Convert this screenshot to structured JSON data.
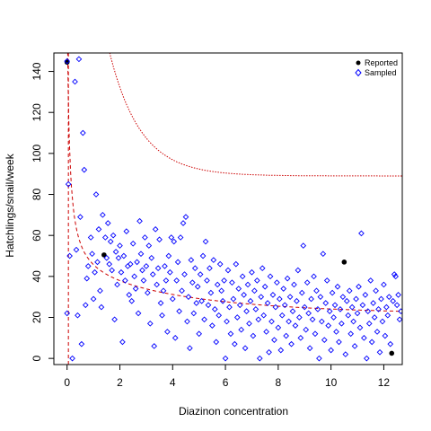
{
  "chart_data": {
    "type": "scatter",
    "xlabel": "Diazinon concentration",
    "ylabel": "Hatchlings/snail/week",
    "xlim": [
      -0.5,
      12.7
    ],
    "ylim": [
      -3,
      149
    ],
    "x_ticks": [
      0,
      2,
      4,
      6,
      8,
      10,
      12
    ],
    "y_ticks": [
      0,
      20,
      40,
      60,
      80,
      100,
      120,
      140
    ],
    "grid": false,
    "legend_position": "top-right",
    "legend": [
      {
        "label": "Reported",
        "marker": "filled-circle",
        "color": "#000000"
      },
      {
        "label": "Sampled",
        "marker": "open-diamond",
        "color": "#0000ff"
      }
    ],
    "series": [
      {
        "name": "Reported",
        "color": "#000000",
        "points": [
          [
            0.0,
            144.5
          ],
          [
            1.4,
            50.5
          ],
          [
            10.5,
            47.0
          ],
          [
            12.3,
            2.5
          ]
        ]
      },
      {
        "name": "Sampled",
        "color": "#0000ff",
        "points": [
          [
            0.0,
            145
          ],
          [
            0.0,
            22
          ],
          [
            0.05,
            85
          ],
          [
            0.1,
            50
          ],
          [
            0.2,
            0
          ],
          [
            0.3,
            135
          ],
          [
            0.35,
            53
          ],
          [
            0.4,
            21
          ],
          [
            0.45,
            146
          ],
          [
            0.5,
            69
          ],
          [
            0.55,
            7
          ],
          [
            0.6,
            110
          ],
          [
            0.65,
            92
          ],
          [
            0.7,
            26
          ],
          [
            0.75,
            39
          ],
          [
            0.8,
            45
          ],
          [
            0.9,
            59
          ],
          [
            0.95,
            51
          ],
          [
            1.0,
            29
          ],
          [
            1.05,
            42
          ],
          [
            1.1,
            80
          ],
          [
            1.15,
            47
          ],
          [
            1.2,
            63
          ],
          [
            1.25,
            33
          ],
          [
            1.3,
            25
          ],
          [
            1.35,
            70
          ],
          [
            1.45,
            59
          ],
          [
            1.5,
            49
          ],
          [
            1.55,
            66
          ],
          [
            1.6,
            46
          ],
          [
            1.65,
            57
          ],
          [
            1.7,
            43
          ],
          [
            1.75,
            60
          ],
          [
            1.8,
            19
          ],
          [
            1.85,
            52
          ],
          [
            1.9,
            36
          ],
          [
            1.95,
            49
          ],
          [
            2.0,
            55
          ],
          [
            2.05,
            42
          ],
          [
            2.1,
            8
          ],
          [
            2.15,
            50
          ],
          [
            2.2,
            38
          ],
          [
            2.25,
            62
          ],
          [
            2.3,
            45
          ],
          [
            2.35,
            31
          ],
          [
            2.4,
            46
          ],
          [
            2.45,
            28
          ],
          [
            2.5,
            56
          ],
          [
            2.55,
            40
          ],
          [
            2.6,
            34
          ],
          [
            2.65,
            47
          ],
          [
            2.7,
            22
          ],
          [
            2.75,
            67
          ],
          [
            2.8,
            51
          ],
          [
            2.85,
            43
          ],
          [
            2.9,
            38
          ],
          [
            2.95,
            59
          ],
          [
            3.0,
            45
          ],
          [
            3.05,
            32
          ],
          [
            3.1,
            55
          ],
          [
            3.15,
            17
          ],
          [
            3.2,
            49
          ],
          [
            3.25,
            41
          ],
          [
            3.3,
            6
          ],
          [
            3.35,
            63
          ],
          [
            3.4,
            36
          ],
          [
            3.45,
            44
          ],
          [
            3.5,
            58
          ],
          [
            3.55,
            27
          ],
          [
            3.6,
            21
          ],
          [
            3.65,
            33
          ],
          [
            3.7,
            45
          ],
          [
            3.75,
            38
          ],
          [
            3.8,
            13
          ],
          [
            3.85,
            50
          ],
          [
            3.9,
            42
          ],
          [
            3.95,
            59
          ],
          [
            4.0,
            29
          ],
          [
            4.05,
            57
          ],
          [
            4.1,
            10
          ],
          [
            4.15,
            38
          ],
          [
            4.2,
            47
          ],
          [
            4.25,
            23
          ],
          [
            4.3,
            59
          ],
          [
            4.35,
            33
          ],
          [
            4.4,
            66
          ],
          [
            4.45,
            41
          ],
          [
            4.5,
            69
          ],
          [
            4.55,
            18
          ],
          [
            4.6,
            30
          ],
          [
            4.65,
            5
          ],
          [
            4.7,
            48
          ],
          [
            4.75,
            37
          ],
          [
            4.8,
            22
          ],
          [
            4.85,
            44
          ],
          [
            4.9,
            27
          ],
          [
            4.95,
            35
          ],
          [
            5.0,
            12
          ],
          [
            5.05,
            41
          ],
          [
            5.1,
            28
          ],
          [
            5.15,
            50
          ],
          [
            5.2,
            19
          ],
          [
            5.25,
            57
          ],
          [
            5.3,
            38
          ],
          [
            5.35,
            26
          ],
          [
            5.4,
            44
          ],
          [
            5.45,
            32
          ],
          [
            5.5,
            16
          ],
          [
            5.55,
            48
          ],
          [
            5.6,
            24
          ],
          [
            5.65,
            8
          ],
          [
            5.7,
            36
          ],
          [
            5.75,
            21
          ],
          [
            5.8,
            46
          ],
          [
            5.85,
            33
          ],
          [
            5.9,
            28
          ],
          [
            5.95,
            38
          ],
          [
            6.0,
            0
          ],
          [
            6.05,
            18
          ],
          [
            6.1,
            43
          ],
          [
            6.15,
            25
          ],
          [
            6.2,
            12
          ],
          [
            6.25,
            37
          ],
          [
            6.3,
            29
          ],
          [
            6.35,
            7
          ],
          [
            6.4,
            46
          ],
          [
            6.45,
            20
          ],
          [
            6.5,
            34
          ],
          [
            6.55,
            26
          ],
          [
            6.6,
            14
          ],
          [
            6.65,
            40
          ],
          [
            6.7,
            31
          ],
          [
            6.75,
            5
          ],
          [
            6.8,
            23
          ],
          [
            6.85,
            36
          ],
          [
            6.9,
            17
          ],
          [
            6.95,
            28
          ],
          [
            7.0,
            42
          ],
          [
            7.05,
            11
          ],
          [
            7.1,
            33
          ],
          [
            7.15,
            24
          ],
          [
            7.2,
            38
          ],
          [
            7.25,
            19
          ],
          [
            7.3,
            0
          ],
          [
            7.35,
            30
          ],
          [
            7.4,
            44
          ],
          [
            7.45,
            21
          ],
          [
            7.5,
            35
          ],
          [
            7.55,
            13
          ],
          [
            7.6,
            27
          ],
          [
            7.65,
            3
          ],
          [
            7.7,
            40
          ],
          [
            7.75,
            18
          ],
          [
            7.8,
            31
          ],
          [
            7.85,
            9
          ],
          [
            7.9,
            25
          ],
          [
            7.95,
            37
          ],
          [
            8.0,
            15
          ],
          [
            8.05,
            29
          ],
          [
            8.1,
            4
          ],
          [
            8.15,
            21
          ],
          [
            8.2,
            34
          ],
          [
            8.25,
            26
          ],
          [
            8.3,
            11
          ],
          [
            8.35,
            39
          ],
          [
            8.4,
            18
          ],
          [
            8.45,
            30
          ],
          [
            8.5,
            7
          ],
          [
            8.55,
            23
          ],
          [
            8.6,
            36
          ],
          [
            8.65,
            16
          ],
          [
            8.7,
            28
          ],
          [
            8.75,
            43
          ],
          [
            8.8,
            20
          ],
          [
            8.85,
            10
          ],
          [
            8.9,
            32
          ],
          [
            8.95,
            55
          ],
          [
            9.0,
            25
          ],
          [
            9.05,
            14
          ],
          [
            9.1,
            37
          ],
          [
            9.15,
            22
          ],
          [
            9.2,
            5
          ],
          [
            9.25,
            29
          ],
          [
            9.3,
            19
          ],
          [
            9.35,
            40
          ],
          [
            9.4,
            12
          ],
          [
            9.45,
            33
          ],
          [
            9.5,
            24
          ],
          [
            9.55,
            0
          ],
          [
            9.6,
            30
          ],
          [
            9.65,
            18
          ],
          [
            9.7,
            51
          ],
          [
            9.75,
            9
          ],
          [
            9.8,
            27
          ],
          [
            9.85,
            38
          ],
          [
            9.9,
            16
          ],
          [
            9.95,
            23
          ],
          [
            10.0,
            4
          ],
          [
            10.05,
            32
          ],
          [
            10.1,
            20
          ],
          [
            10.15,
            26
          ],
          [
            10.2,
            13
          ],
          [
            10.25,
            35
          ],
          [
            10.3,
            8
          ],
          [
            10.35,
            24
          ],
          [
            10.4,
            17
          ],
          [
            10.45,
            30
          ],
          [
            10.55,
            2
          ],
          [
            10.6,
            28
          ],
          [
            10.65,
            21
          ],
          [
            10.7,
            33
          ],
          [
            10.75,
            12
          ],
          [
            10.8,
            25
          ],
          [
            10.85,
            18
          ],
          [
            10.9,
            6
          ],
          [
            10.95,
            29
          ],
          [
            11.0,
            22
          ],
          [
            11.05,
            35
          ],
          [
            11.1,
            15
          ],
          [
            11.15,
            61
          ],
          [
            11.2,
            26
          ],
          [
            11.25,
            10
          ],
          [
            11.3,
            31
          ],
          [
            11.35,
            0
          ],
          [
            11.4,
            23
          ],
          [
            11.45,
            17
          ],
          [
            11.5,
            38
          ],
          [
            11.55,
            8
          ],
          [
            11.6,
            27
          ],
          [
            11.65,
            20
          ],
          [
            11.7,
            33
          ],
          [
            11.75,
            13
          ],
          [
            11.8,
            24
          ],
          [
            11.85,
            3
          ],
          [
            11.9,
            29
          ],
          [
            11.95,
            18
          ],
          [
            12.0,
            36
          ],
          [
            12.05,
            11
          ],
          [
            12.1,
            25
          ],
          [
            12.15,
            21
          ],
          [
            12.2,
            30
          ],
          [
            12.25,
            7
          ],
          [
            12.35,
            28
          ],
          [
            12.4,
            41
          ],
          [
            12.45,
            40
          ],
          [
            12.5,
            26
          ],
          [
            12.55,
            31
          ],
          [
            12.6,
            19
          ],
          [
            12.65,
            23
          ]
        ]
      }
    ],
    "lines": [
      {
        "name": "fitted-curve",
        "style": "dashed",
        "color": "#cc0000",
        "fn": "fit",
        "params": {
          "a": 49.5,
          "b": 1.7,
          "c": 0.16
        }
      },
      {
        "name": "upper-curve",
        "style": "dotted",
        "color": "#cc0000",
        "fn": "upper",
        "params": {
          "base": 89,
          "amp": 120,
          "k": 0.85,
          "x0": 0.8
        }
      },
      {
        "name": "vertical-line",
        "style": "dashed",
        "color": "#cc0000",
        "fn": "vline",
        "params": {
          "x": 0.05
        }
      }
    ]
  }
}
